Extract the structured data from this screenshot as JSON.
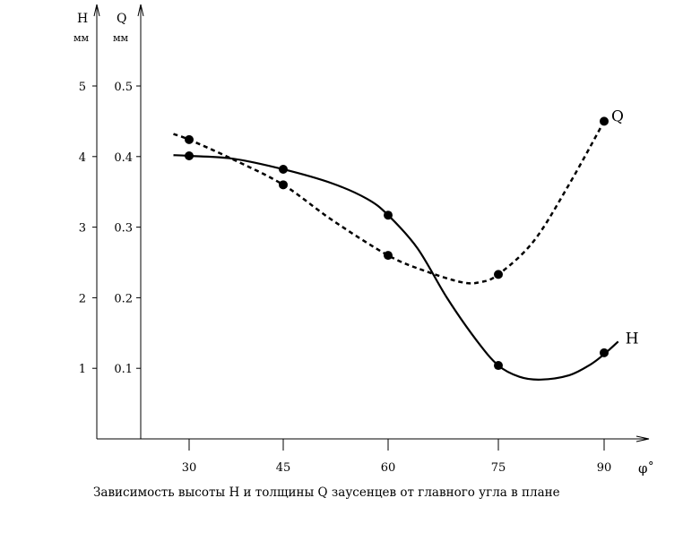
{
  "chart_data": {
    "type": "line",
    "caption": "Зависимость высоты H и толщины Q заусенцев от главного угла в плане",
    "xlabel": "φ˚",
    "x_ticks": [
      30,
      45,
      60,
      75,
      90
    ],
    "y_axes": [
      {
        "name": "H",
        "unit": "мм",
        "ticks": [
          "5",
          "4",
          "3",
          "2",
          "1"
        ],
        "tick_values": [
          5,
          4,
          3,
          2,
          1
        ],
        "ylim": [
          0,
          5
        ]
      },
      {
        "name": "Q",
        "unit": "мм",
        "ticks": [
          "0.5",
          "0.4",
          "0.3",
          "0.2",
          "0.1"
        ],
        "tick_values": [
          0.5,
          0.4,
          0.3,
          0.2,
          0.1
        ],
        "ylim": [
          0,
          0.5
        ]
      }
    ],
    "series": [
      {
        "name": "H",
        "label": "H",
        "axis": 0,
        "style": "solid",
        "points": [
          [
            30,
            4.01
          ],
          [
            45,
            3.82
          ],
          [
            60,
            3.17
          ],
          [
            75,
            1.04
          ],
          [
            90,
            1.22
          ]
        ],
        "curve": [
          [
            27.5,
            4.02
          ],
          [
            30,
            4.01
          ],
          [
            37,
            3.97
          ],
          [
            45,
            3.82
          ],
          [
            52,
            3.62
          ],
          [
            57,
            3.4
          ],
          [
            60,
            3.17
          ],
          [
            64,
            2.7
          ],
          [
            68,
            2.0
          ],
          [
            72,
            1.4
          ],
          [
            75,
            1.04
          ],
          [
            78,
            0.88
          ],
          [
            81,
            0.84
          ],
          [
            85,
            0.9
          ],
          [
            88,
            1.05
          ],
          [
            90,
            1.2
          ],
          [
            92,
            1.38
          ]
        ]
      },
      {
        "name": "Q",
        "label": "Q",
        "axis": 1,
        "style": "dashed",
        "points": [
          [
            30,
            0.424
          ],
          [
            45,
            0.36
          ],
          [
            60,
            0.26
          ],
          [
            75,
            0.233
          ],
          [
            90,
            0.45
          ]
        ],
        "curve": [
          [
            27.5,
            0.432
          ],
          [
            30,
            0.424
          ],
          [
            37,
            0.396
          ],
          [
            45,
            0.36
          ],
          [
            52,
            0.31
          ],
          [
            60,
            0.26
          ],
          [
            65,
            0.238
          ],
          [
            70,
            0.222
          ],
          [
            72.5,
            0.222
          ],
          [
            75,
            0.233
          ],
          [
            80,
            0.28
          ],
          [
            85,
            0.36
          ],
          [
            90,
            0.45
          ]
        ]
      }
    ]
  }
}
